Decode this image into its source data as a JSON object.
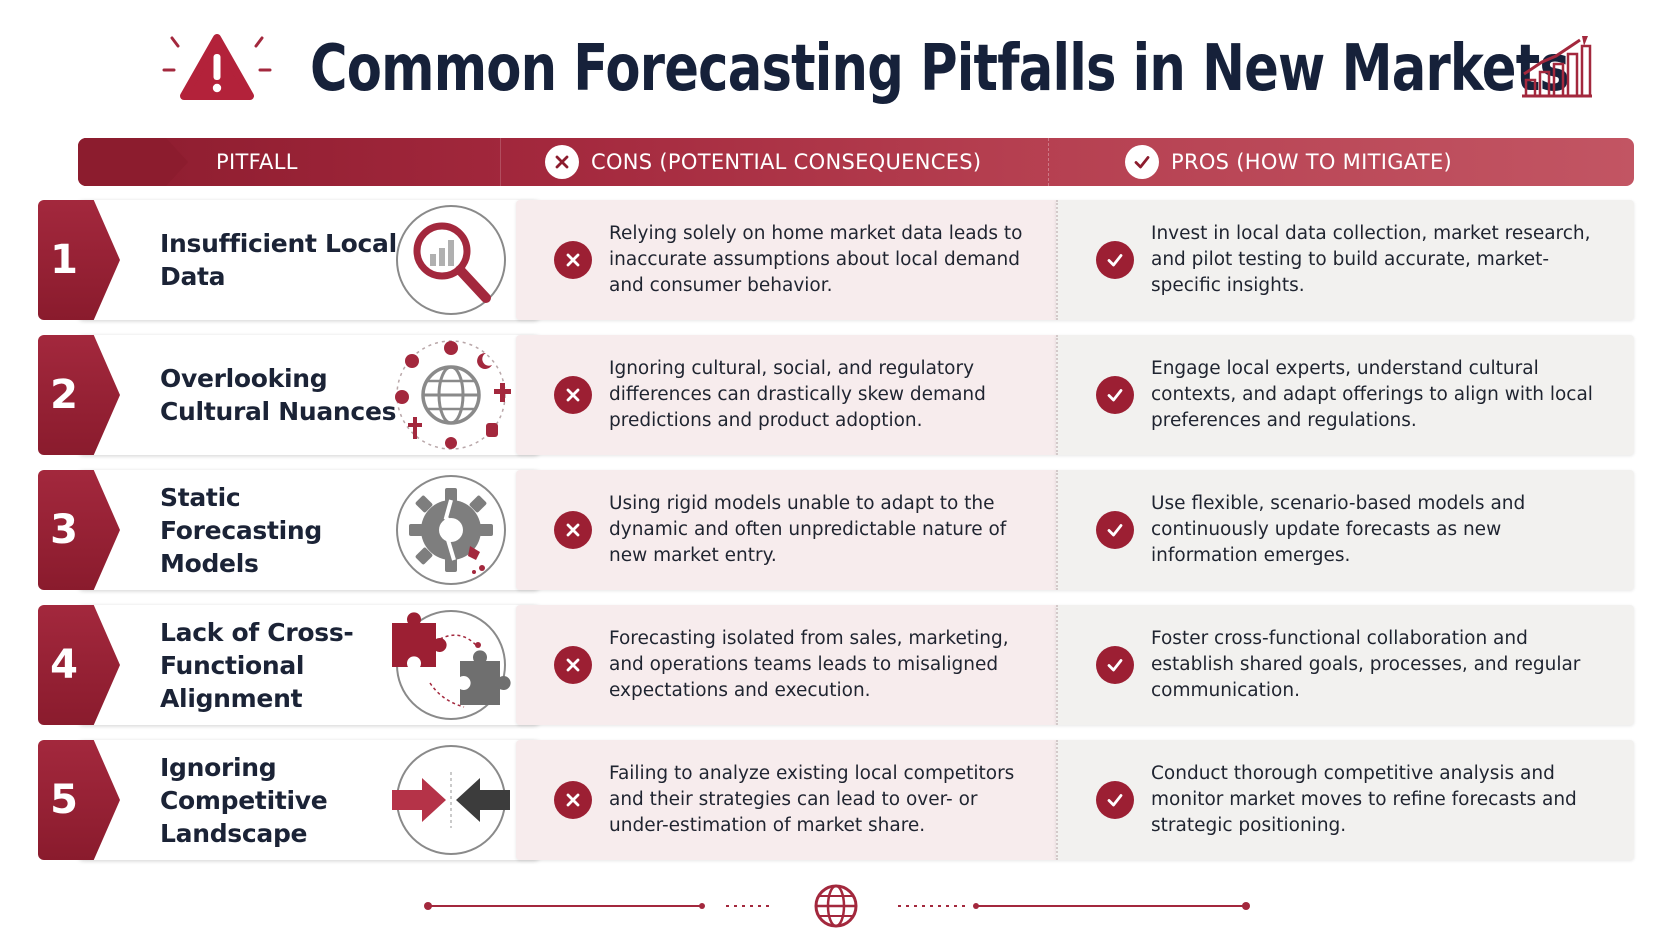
{
  "title": "Common Forecasting Pitfalls in New Markets",
  "header": {
    "pitfall_label": "PITFALL",
    "cons_label": "CONS (POTENTIAL CONSEQUENCES)",
    "pros_label": "PROS (HOW TO MITIGATE)"
  },
  "rows": [
    {
      "number": "1",
      "pitfall": "Insufficient Local Data",
      "icon": "magnifier-bar-chart-icon",
      "cons": "Relying solely on home market data leads to inaccurate assumptions about local demand and consumer behavior.",
      "pros": "Invest in local data collection, market research, and pilot testing to build accurate, market-specific insights."
    },
    {
      "number": "2",
      "pitfall": "Overlooking Cultural Nuances",
      "icon": "globe-cultural-symbols-icon",
      "cons": "Ignoring cultural, social, and regulatory differences can drastically skew demand predictions and product adoption.",
      "pros": "Engage local experts, understand cultural contexts, and adapt offerings to align with local preferences and regulations."
    },
    {
      "number": "3",
      "pitfall": "Static Forecasting Models",
      "icon": "broken-gear-icon",
      "cons": "Using rigid models unable to adapt to the dynamic and often unpredictable nature of new market entry.",
      "pros": "Use flexible, scenario-based models and continuously update forecasts as new information emerges."
    },
    {
      "number": "4",
      "pitfall": "Lack of Cross-Functional Alignment",
      "icon": "puzzle-pieces-icon",
      "cons": "Forecasting isolated from sales, marketing, and operations teams leads to misaligned expectations and execution.",
      "pros": "Foster cross-functional collaboration and establish shared goals, processes, and regular communication."
    },
    {
      "number": "5",
      "pitfall": "Ignoring Competitive Landscape",
      "icon": "opposing-arrows-icon",
      "cons": "Failing to analyze existing local competitors and their strategies can lead to over- or under-estimation of market share.",
      "pros": "Conduct thorough competitive analysis and monitor market moves to refine forecasts and strategic positioning."
    }
  ],
  "colors": {
    "accent": "#9c1f33",
    "title": "#16213a",
    "cons_bg": "#f7eced",
    "pros_bg": "#f2f1ef"
  },
  "icons": {
    "title_left": "warning-icon",
    "title_right": "growth-chart-icon",
    "header_cons": "x-circle-icon",
    "header_pros": "check-circle-icon",
    "footer": "globe-icon"
  }
}
